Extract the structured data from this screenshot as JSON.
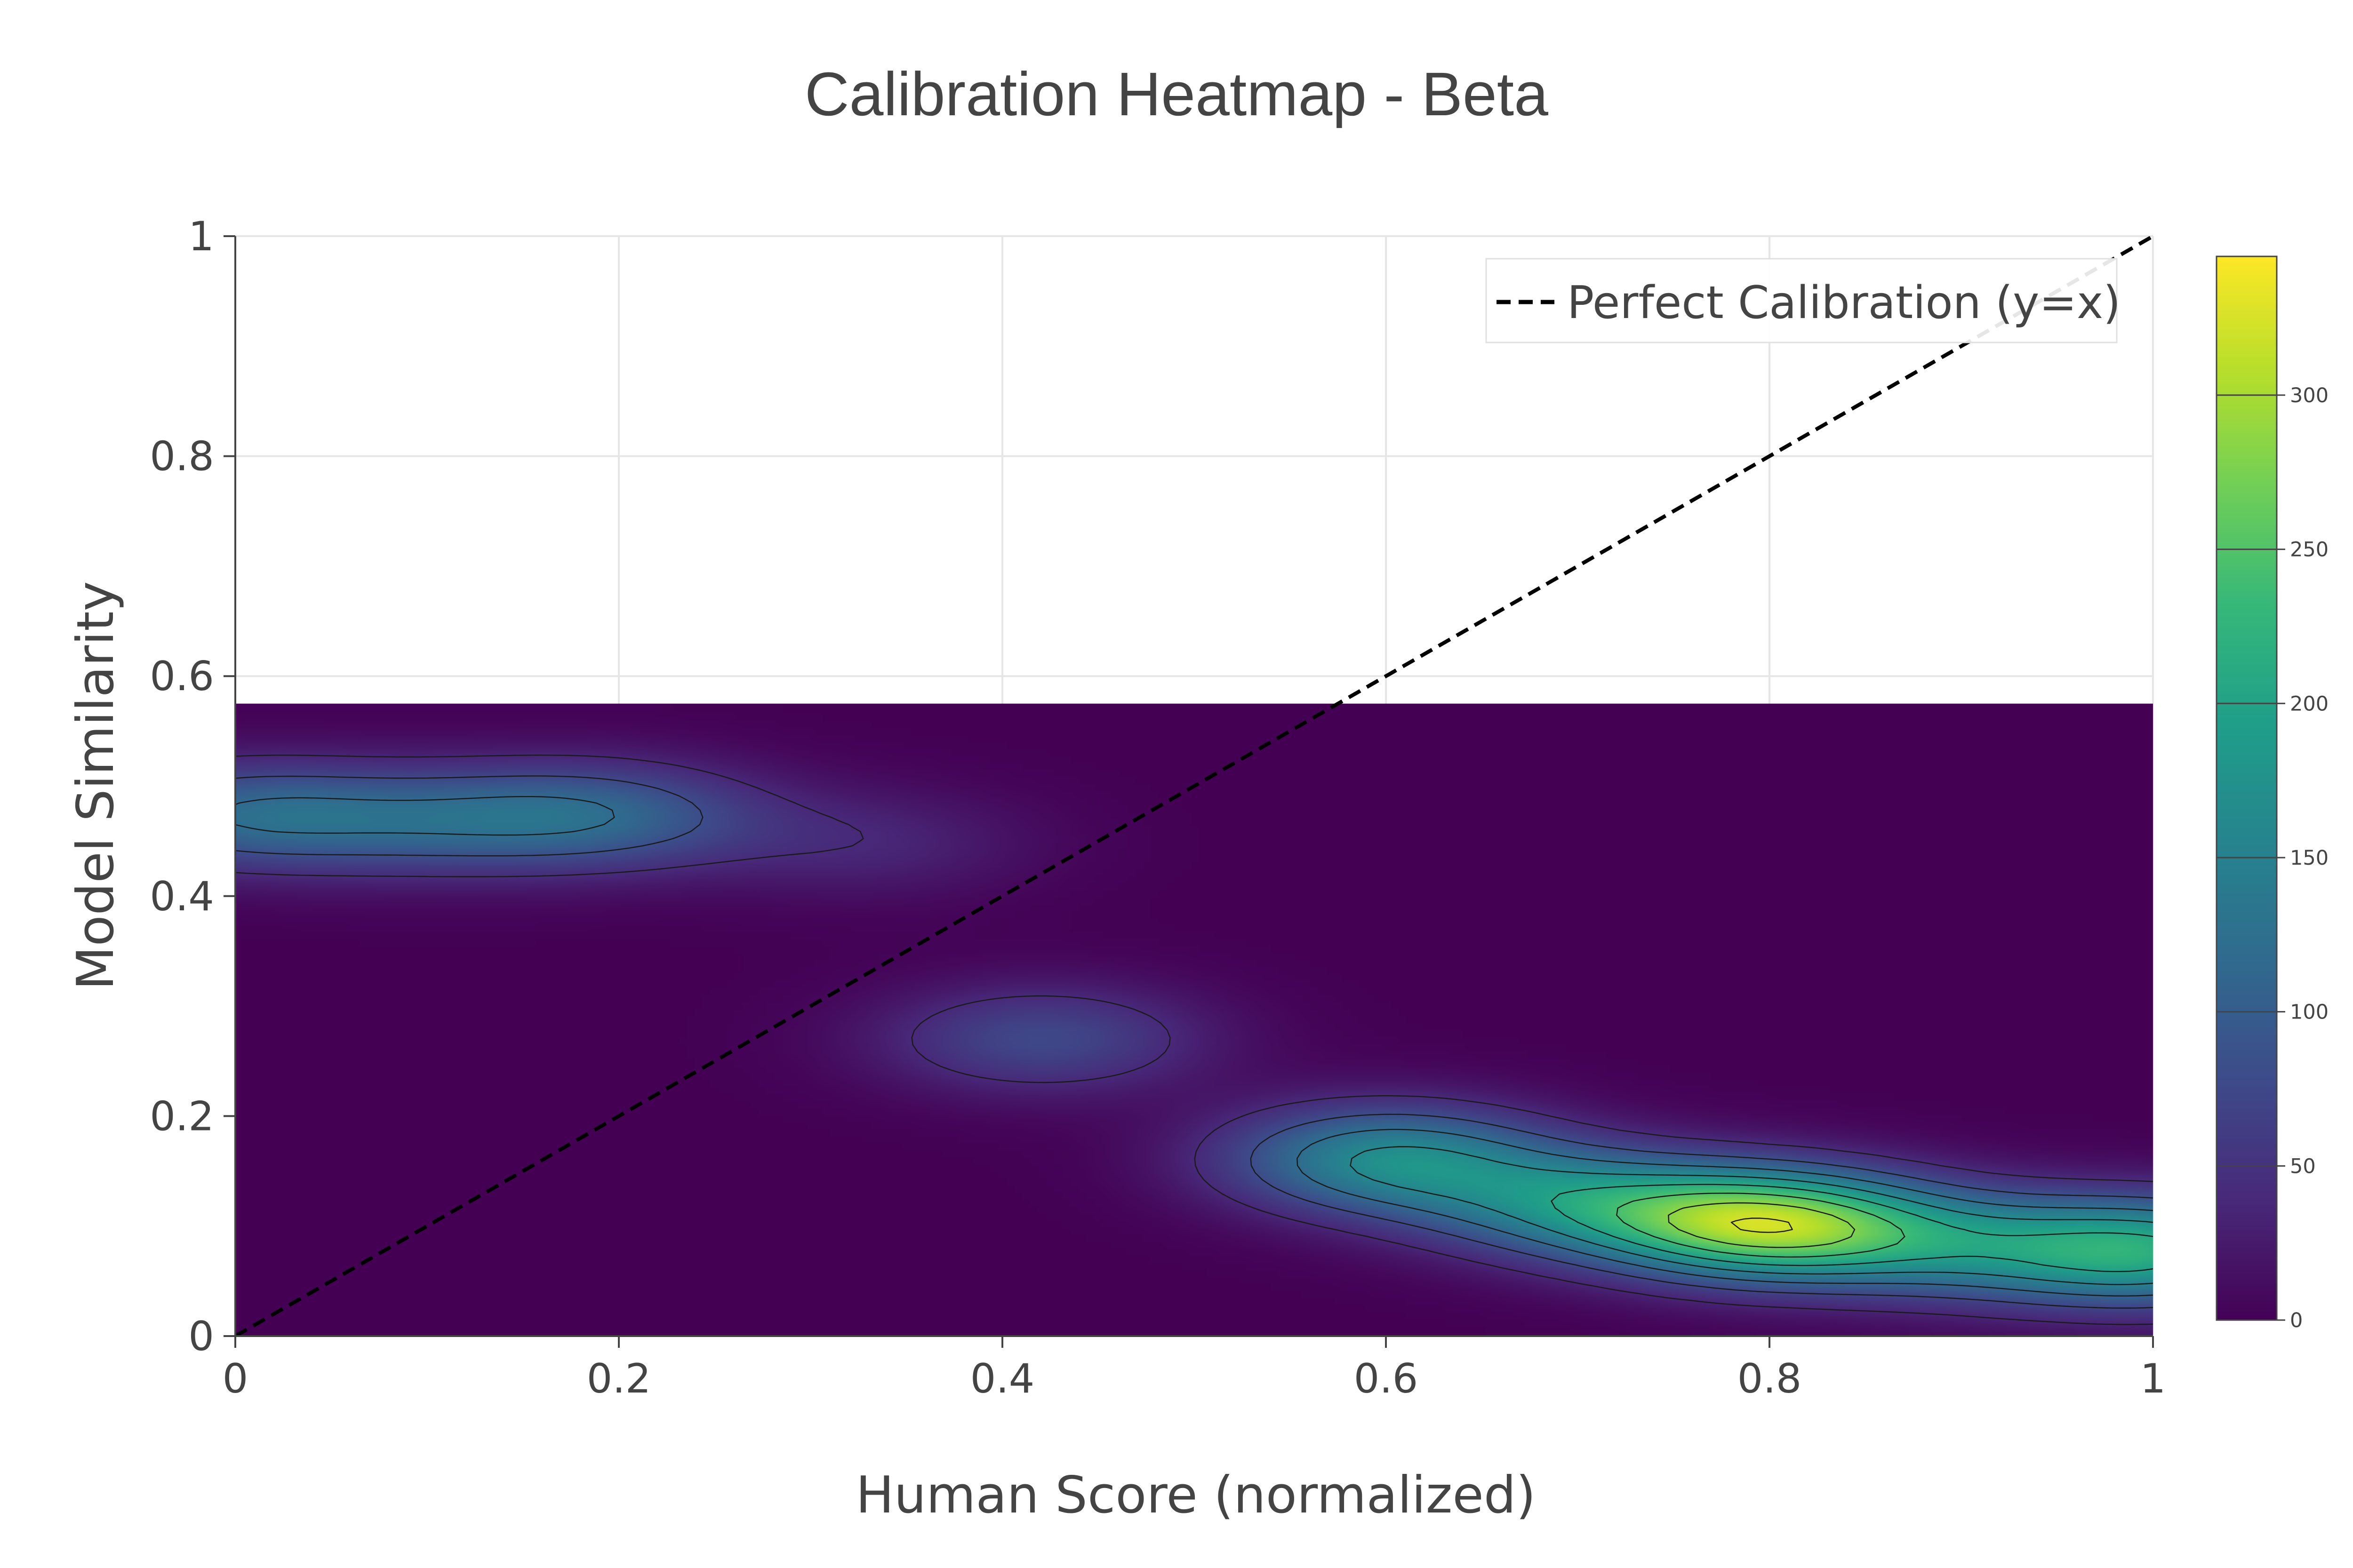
{
  "chart_data": {
    "type": "heatmap",
    "title": "Calibration Heatmap - Beta",
    "xlabel": "Human Score (normalized)",
    "ylabel": "Model Similarity",
    "xlim": [
      0,
      1
    ],
    "ylim": [
      0,
      1
    ],
    "x_ticks": [
      "0",
      "0.2",
      "0.4",
      "0.6",
      "0.8",
      "1"
    ],
    "y_ticks": [
      "0",
      "0.2",
      "0.4",
      "0.6",
      "0.8",
      "1"
    ],
    "grid": true,
    "density_extent": {
      "x": [
        0,
        1
      ],
      "y": [
        0,
        0.575
      ]
    },
    "contour_levels": [
      40,
      80,
      120,
      160,
      200,
      240,
      280,
      320
    ],
    "colorbar": {
      "colorscale": "viridis",
      "range": [
        0,
        345
      ],
      "ticks": [
        "0",
        "50",
        "100",
        "150",
        "200",
        "250",
        "300"
      ],
      "tick_values": [
        0,
        50,
        100,
        150,
        200,
        250,
        300
      ]
    },
    "density_peaks": [
      {
        "x": 0.0,
        "y": 0.475,
        "value": 130
      },
      {
        "x": 0.1,
        "y": 0.47,
        "value": 120
      },
      {
        "x": 0.19,
        "y": 0.475,
        "value": 130
      },
      {
        "x": 0.33,
        "y": 0.45,
        "value": 40
      },
      {
        "x": 0.42,
        "y": 0.27,
        "value": 75
      },
      {
        "x": 0.6,
        "y": 0.16,
        "value": 180
      },
      {
        "x": 0.7,
        "y": 0.12,
        "value": 200
      },
      {
        "x": 0.8,
        "y": 0.1,
        "value": 340
      },
      {
        "x": 0.9,
        "y": 0.08,
        "value": 180
      },
      {
        "x": 1.0,
        "y": 0.075,
        "value": 230
      }
    ],
    "series": [
      {
        "name": "Perfect Calibration (y=x)",
        "type": "line",
        "style": "dashed",
        "color": "#000000",
        "x": [
          0,
          1
        ],
        "y": [
          0,
          1
        ]
      }
    ],
    "legend_position": "top-right"
  }
}
